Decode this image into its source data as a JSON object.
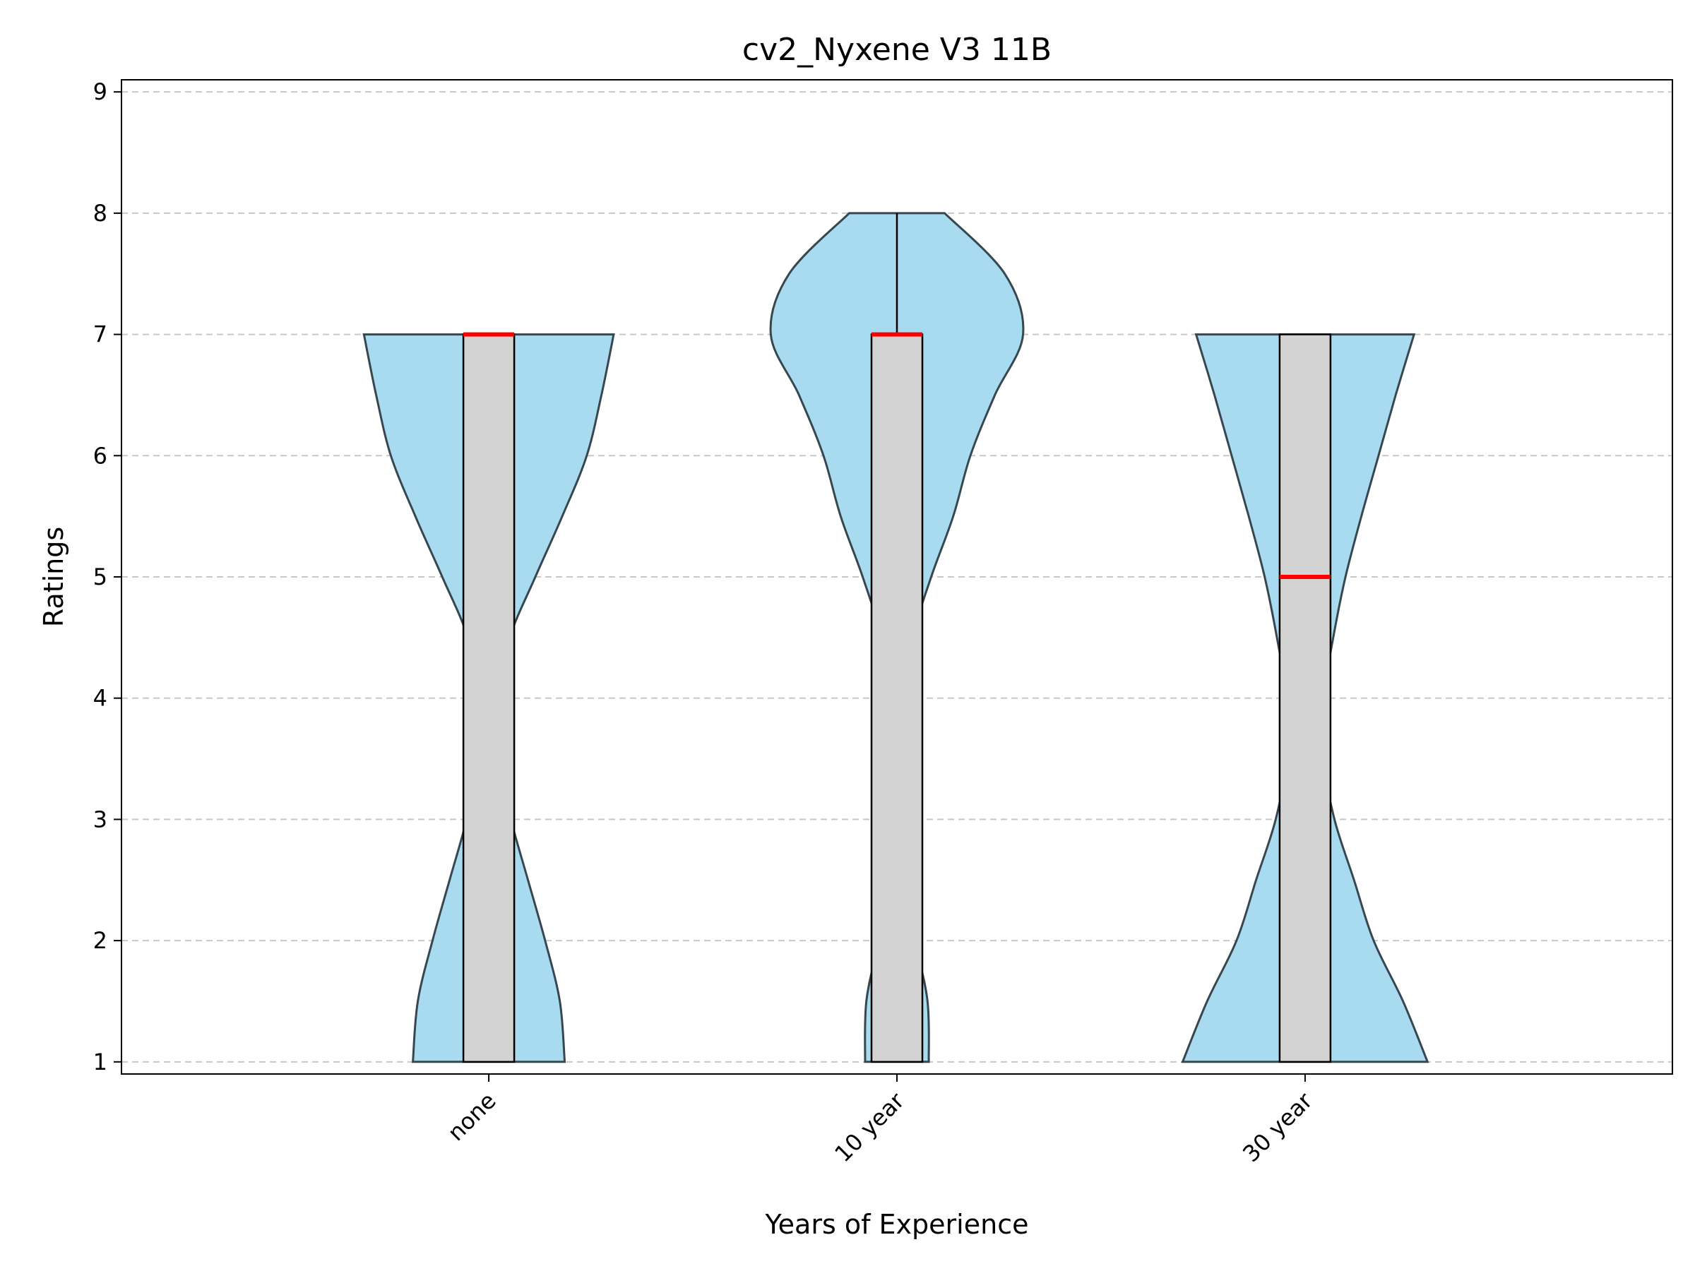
{
  "chart_data": {
    "type": "violin",
    "title": "cv2_Nyxene V3 11B",
    "xlabel": "Years of Experience",
    "ylabel": "Ratings",
    "categories": [
      "none",
      "10 year",
      "30 year"
    ],
    "ylim": [
      0.9,
      9.1
    ],
    "yticks": [
      1,
      2,
      3,
      4,
      5,
      6,
      7,
      8,
      9
    ],
    "grid": "y-dashed",
    "colors": {
      "violin_fill": "#a8dbef",
      "violin_edge": "#37474f",
      "box_fill": "#d3d3d3",
      "box_edge": "#000000",
      "median": "#ff0000",
      "grid": "#c8c8c8"
    },
    "series": [
      {
        "category": "none",
        "min": 1,
        "q1": 1,
        "median": 7,
        "q3": 7,
        "max": 7,
        "density": [
          [
            1,
            0.31
          ],
          [
            1.5,
            0.29
          ],
          [
            2,
            0.23
          ],
          [
            2.5,
            0.16
          ],
          [
            3,
            0.09
          ],
          [
            3.5,
            0.035
          ],
          [
            4,
            0.03
          ],
          [
            4.5,
            0.085
          ],
          [
            5,
            0.19
          ],
          [
            5.5,
            0.3
          ],
          [
            6,
            0.4
          ],
          [
            6.5,
            0.46
          ],
          [
            7,
            0.51
          ]
        ]
      },
      {
        "category": "10 year",
        "min": 1,
        "q1": 1,
        "median": 7,
        "q3": 7,
        "max": 8,
        "density": [
          [
            1,
            0.13
          ],
          [
            1.5,
            0.125
          ],
          [
            2,
            0.075
          ],
          [
            2.5,
            0.04
          ],
          [
            3,
            0.01
          ],
          [
            3.5,
            0.025
          ],
          [
            4,
            0.04
          ],
          [
            4.5,
            0.065
          ],
          [
            5,
            0.14
          ],
          [
            5.5,
            0.23
          ],
          [
            6,
            0.3
          ],
          [
            6.5,
            0.4
          ],
          [
            7,
            0.515
          ],
          [
            7.5,
            0.44
          ],
          [
            8,
            0.195
          ]
        ]
      },
      {
        "category": "30 year",
        "min": 1,
        "q1": 1,
        "median": 5,
        "q3": 7,
        "max": 7,
        "density": [
          [
            1,
            0.5
          ],
          [
            1.5,
            0.4
          ],
          [
            2,
            0.28
          ],
          [
            2.5,
            0.2
          ],
          [
            3,
            0.12
          ],
          [
            3.5,
            0.075
          ],
          [
            4,
            0.075
          ],
          [
            4.5,
            0.115
          ],
          [
            5,
            0.165
          ],
          [
            5.5,
            0.23
          ],
          [
            6,
            0.3
          ],
          [
            6.5,
            0.37
          ],
          [
            7,
            0.445
          ]
        ]
      }
    ]
  }
}
